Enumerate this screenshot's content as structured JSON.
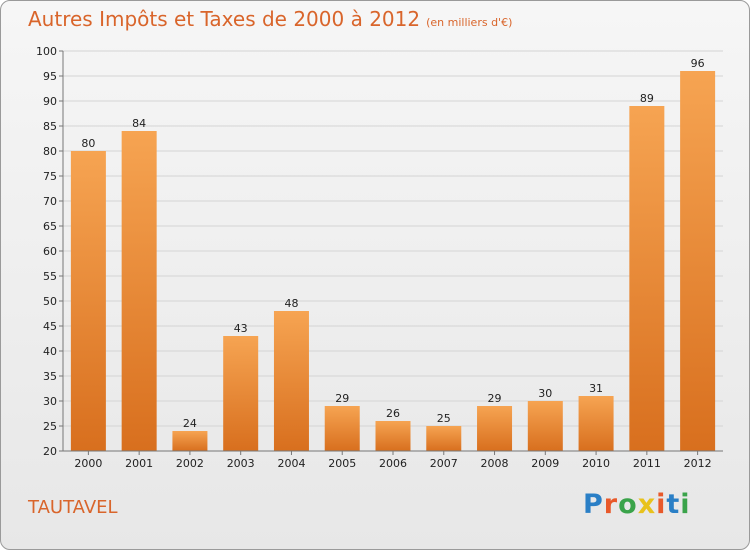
{
  "header": {
    "title": "Autres Impôts et Taxes de 2000 à 2012",
    "unit": "(en milliers d'€)"
  },
  "commune": "TAUTAVEL",
  "logo": {
    "letters": [
      "P",
      "r",
      "o",
      "x",
      "i",
      "t",
      "i"
    ],
    "colors": [
      "#2a7fc6",
      "#e8592a",
      "#3aa34a",
      "#e8c21c",
      "#e8592a",
      "#2a7fc6",
      "#3aa34a"
    ]
  },
  "colors": {
    "bar_light": "#f6a452",
    "bar_dark": "#d86f1e",
    "grid": "#d4d4d4",
    "axis": "#777777",
    "title": "#d9652b"
  },
  "chart_data": {
    "type": "bar",
    "categories": [
      "2000",
      "2001",
      "2002",
      "2003",
      "2004",
      "2005",
      "2006",
      "2007",
      "2008",
      "2009",
      "2010",
      "2011",
      "2012"
    ],
    "values": [
      80,
      84,
      24,
      43,
      48,
      29,
      26,
      25,
      29,
      30,
      31,
      89,
      96
    ],
    "title": "Autres Impôts et Taxes de 2000 à 2012",
    "xlabel": "",
    "ylabel": "",
    "ylim": [
      20,
      100
    ],
    "yticks": [
      20,
      25,
      30,
      35,
      40,
      45,
      50,
      55,
      60,
      65,
      70,
      75,
      80,
      85,
      90,
      95,
      100
    ],
    "grid": true,
    "legend": "none"
  }
}
